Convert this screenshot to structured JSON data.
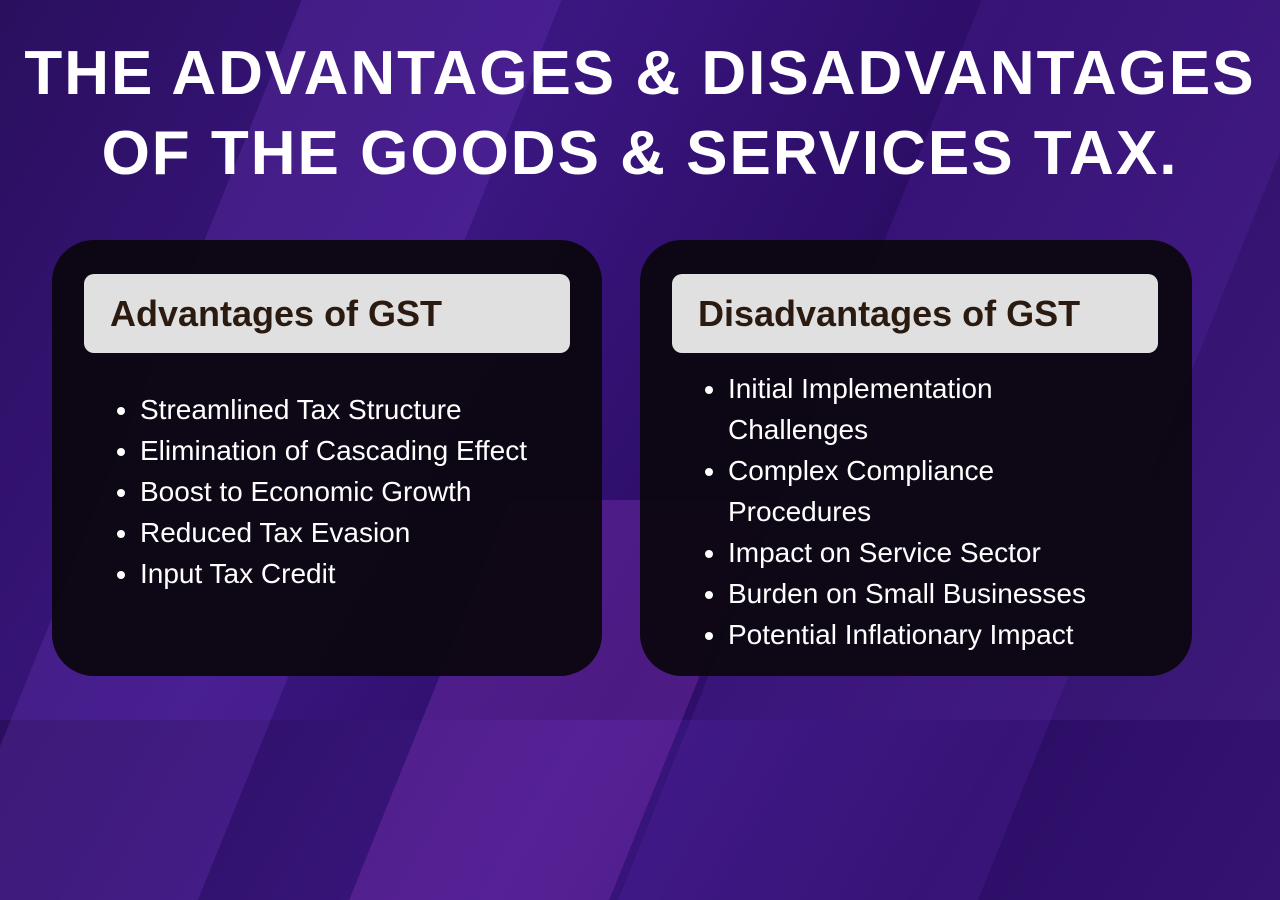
{
  "title": {
    "line1": "THE ADVANTAGES & DISADVANTAGES",
    "line2": "OF THE GOODS & SERVICES TAX."
  },
  "panels": [
    {
      "heading": "Advantages of GST",
      "items": [
        "Streamlined Tax Structure",
        "Elimination of Cascading Effect",
        "Boost to Economic Growth",
        "Reduced Tax Evasion",
        "Input Tax Credit"
      ]
    },
    {
      "heading": "Disadvantages of GST",
      "items": [
        "Initial Implementation Challenges",
        "Complex Compliance Procedures",
        "Impact on Service Sector",
        "Burden on Small Businesses",
        "Potential Inflationary Impact"
      ]
    }
  ]
}
